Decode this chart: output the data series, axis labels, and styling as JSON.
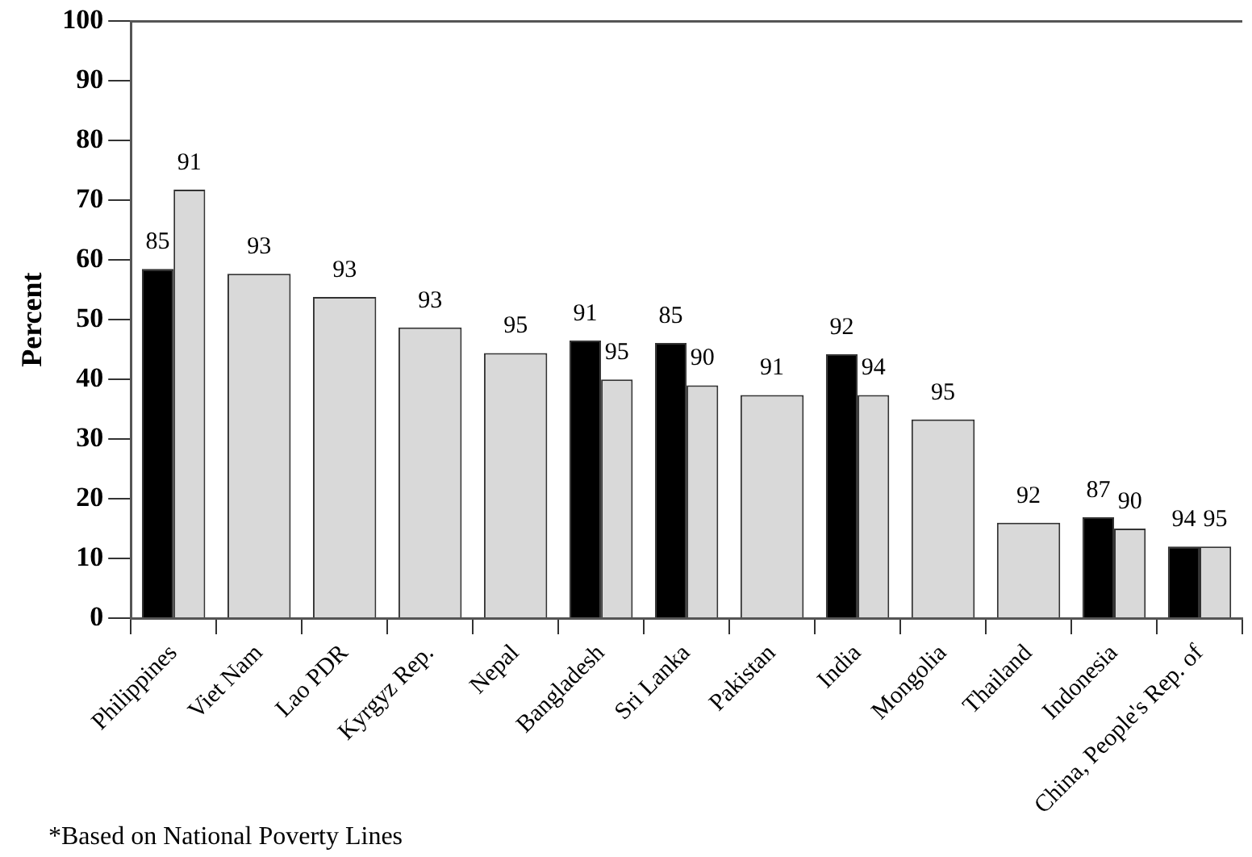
{
  "chart_data": {
    "type": "bar",
    "ylabel": "Percent",
    "categories": [
      "Philippines",
      "Viet Nam",
      "Lao PDR",
      "Kyrgyz Rep.",
      "Nepal",
      "Bangladesh",
      "Sri Lanka",
      "Pakistan",
      "India",
      "Mongolia",
      "Thailand",
      "Indonesia",
      "China, People's Rep. of"
    ],
    "series": [
      {
        "color": "#000000",
        "values": [
          58.5,
          null,
          null,
          null,
          null,
          46.5,
          46.1,
          null,
          44.2,
          null,
          null,
          16.9,
          12.0
        ]
      },
      {
        "color": "#d9d9d9",
        "values": [
          71.8,
          57.7,
          53.8,
          48.7,
          44.4,
          40.0,
          39.0,
          37.4,
          37.4,
          33.3,
          16.0,
          15.0,
          12.0
        ]
      }
    ],
    "ylim": [
      0,
      100
    ],
    "yticks": [
      0,
      10,
      20,
      30,
      40,
      50,
      60,
      70,
      80,
      90,
      100
    ],
    "grid": false,
    "legend": false,
    "annotations": [
      {
        "text": "85",
        "x": "Philippines",
        "y": 58.5
      },
      {
        "text": "91",
        "x": "Philippines",
        "y": 71.8
      },
      {
        "text": "93",
        "x": "Viet Nam",
        "y": 57.7
      },
      {
        "text": "93",
        "x": "Lao PDR",
        "y": 53.8
      },
      {
        "text": "93",
        "x": "Kyrgyz Rep.",
        "y": 48.7
      },
      {
        "text": "95",
        "x": "Nepal",
        "y": 44.4
      },
      {
        "text": "91",
        "x": "Bangladesh",
        "y": 46.5
      },
      {
        "text": "95",
        "x": "Bangladesh",
        "y": 40.0
      },
      {
        "text": "85",
        "x": "Sri Lanka",
        "y": 46.1
      },
      {
        "text": "90",
        "x": "Sri Lanka",
        "y": 39.0
      },
      {
        "text": "91",
        "x": "Pakistan",
        "y": 37.4
      },
      {
        "text": "92",
        "x": "India",
        "y": 44.2
      },
      {
        "text": "94",
        "x": "India",
        "y": 37.4
      },
      {
        "text": "95",
        "x": "Mongolia",
        "y": 33.3
      },
      {
        "text": "92",
        "x": "Thailand",
        "y": 16.0
      },
      {
        "text": "87",
        "x": "Indonesia",
        "y": 16.9
      },
      {
        "text": "90",
        "x": "Indonesia",
        "y": 15.0
      },
      {
        "text": "94",
        "x": "China, People's Rep. of",
        "y": 12.0
      },
      {
        "text": "95",
        "x": "China, People's Rep. of",
        "y": 12.0
      },
      "*Based on National Poverty Lines"
    ]
  }
}
